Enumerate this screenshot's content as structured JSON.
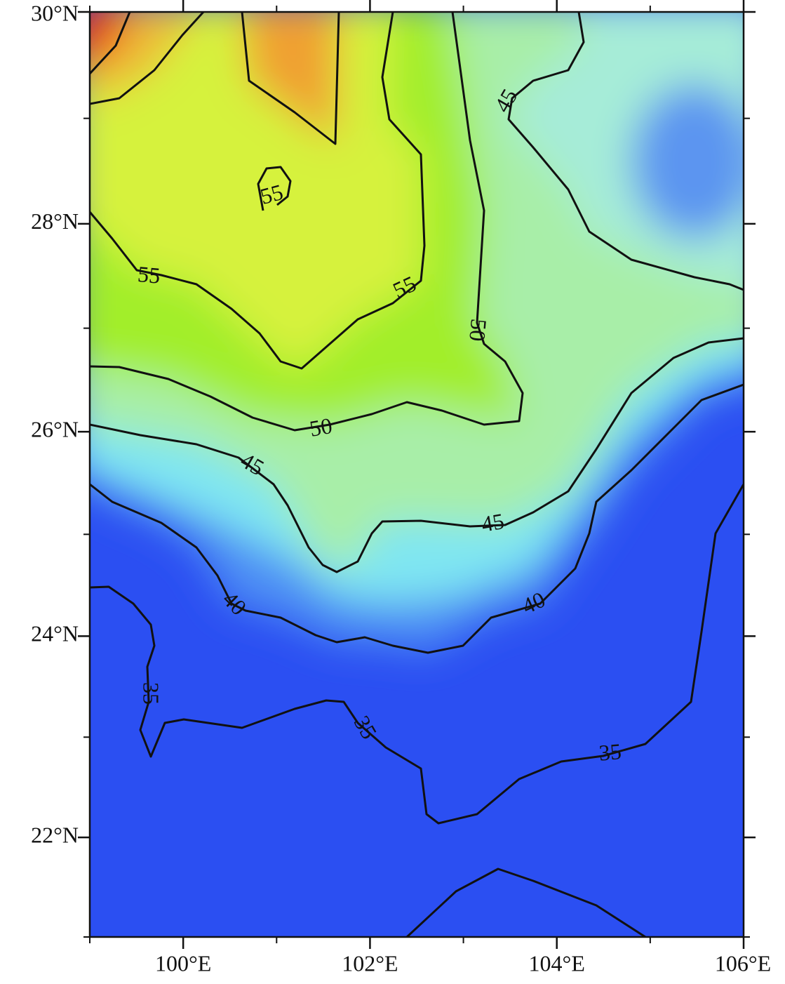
{
  "map": {
    "xlim": [
      99,
      106
    ],
    "ylim": [
      21,
      30
    ],
    "xticks": [
      {
        "value": 100,
        "label": "100°E"
      },
      {
        "value": 102,
        "label": "102°E"
      },
      {
        "value": 104,
        "label": "104°E"
      },
      {
        "value": 106,
        "label": "106°E"
      }
    ],
    "yticks": [
      {
        "value": 22,
        "label": "22°N"
      },
      {
        "value": 24,
        "label": "24°N"
      },
      {
        "value": 26,
        "label": "26°N"
      },
      {
        "value": 28,
        "label": "28°N"
      },
      {
        "value": 30,
        "label": "30°N"
      }
    ],
    "contour_labels": [
      55,
      55,
      55,
      50,
      50,
      45,
      45,
      45,
      40,
      40,
      35,
      35,
      35
    ]
  }
}
